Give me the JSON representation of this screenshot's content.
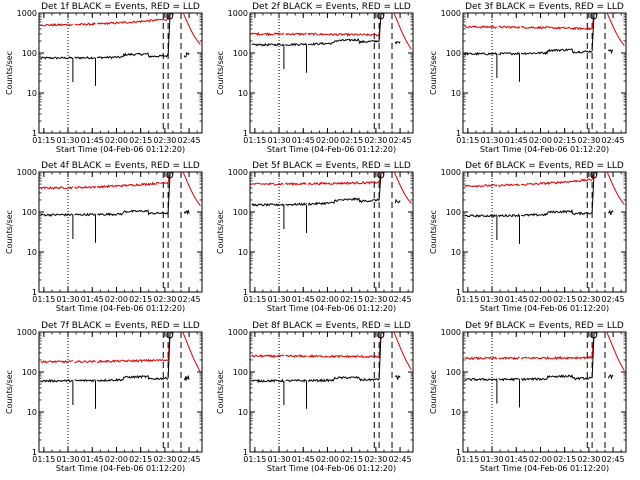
{
  "panel_template": {
    "ylabel": "Counts/sec",
    "xlabel_prefix": "Start Time",
    "x_ticks": [
      "01:15",
      "01:30",
      "01:45",
      "02:00",
      "02:15",
      "02:30",
      "02:45"
    ],
    "y_ticks": [
      "1",
      "10",
      "100",
      "1000"
    ]
  },
  "colors": {
    "events": "#000000",
    "lld": "#dd0000",
    "axes": "#000000",
    "background": "#ffffff"
  },
  "chart_data": [
    {
      "type": "line",
      "title": "Det 1f BLACK = Events, RED = LLD",
      "xlabel": "Start Time (04-Feb-06 01:12:20)",
      "ylabel": "Counts/sec",
      "x_ticks": [
        "01:15",
        "01:30",
        "01:45",
        "02:00",
        "02:15",
        "02:30",
        "02:45"
      ],
      "yscale": "log",
      "ylim": [
        1,
        1000
      ],
      "events_level": 75,
      "lld_level": 500,
      "events_end": 85,
      "lld_end": 700,
      "dotted_markers": [
        "01:30"
      ],
      "dashed_markers": [
        "02:29",
        "02:32",
        "02:40"
      ],
      "series": [
        {
          "name": "BLACK = Events"
        },
        {
          "name": "RED = LLD"
        }
      ]
    },
    {
      "type": "line",
      "title": "Det 2f BLACK = Events, RED = LLD",
      "xlabel": "Start Time (04-Feb-06 01:12:20)",
      "ylabel": "Counts/sec",
      "x_ticks": [
        "01:15",
        "01:30",
        "01:45",
        "02:00",
        "02:15",
        "02:30",
        "02:45"
      ],
      "yscale": "log",
      "ylim": [
        1,
        1000
      ],
      "events_level": 160,
      "lld_level": 300,
      "events_end": 200,
      "lld_end": 280,
      "dotted_markers": [
        "01:30"
      ],
      "dashed_markers": [
        "02:29",
        "02:32",
        "02:40"
      ],
      "series": [
        {
          "name": "BLACK = Events"
        },
        {
          "name": "RED = LLD"
        }
      ]
    },
    {
      "type": "line",
      "title": "Det 3f BLACK = Events, RED = LLD",
      "xlabel": "Start Time (04-Feb-06 01:12:20)",
      "ylabel": "Counts/sec",
      "x_ticks": [
        "01:15",
        "01:30",
        "01:45",
        "02:00",
        "02:15",
        "02:30",
        "02:45"
      ],
      "yscale": "log",
      "ylim": [
        1,
        1000
      ],
      "events_level": 95,
      "lld_level": 450,
      "events_end": 110,
      "lld_end": 400,
      "dotted_markers": [
        "01:30"
      ],
      "dashed_markers": [
        "02:29",
        "02:32",
        "02:40"
      ],
      "series": [
        {
          "name": "BLACK = Events"
        },
        {
          "name": "RED = LLD"
        }
      ]
    },
    {
      "type": "line",
      "title": "Det 4f BLACK = Events, RED = LLD",
      "xlabel": "Start Time (04-Feb-06 01:12:20)",
      "ylabel": "Counts/sec",
      "x_ticks": [
        "01:15",
        "01:30",
        "01:45",
        "02:00",
        "02:15",
        "02:30",
        "02:45"
      ],
      "yscale": "log",
      "ylim": [
        1,
        1000
      ],
      "events_level": 85,
      "lld_level": 400,
      "events_end": 95,
      "lld_end": 550,
      "dotted_markers": [
        "01:30"
      ],
      "dashed_markers": [
        "02:29",
        "02:32",
        "02:40"
      ],
      "series": [
        {
          "name": "BLACK = Events"
        },
        {
          "name": "RED = LLD"
        }
      ]
    },
    {
      "type": "line",
      "title": "Det 5f BLACK = Events, RED = LLD",
      "xlabel": "Start Time (04-Feb-06 01:12:20)",
      "ylabel": "Counts/sec",
      "x_ticks": [
        "01:15",
        "01:30",
        "01:45",
        "02:00",
        "02:15",
        "02:30",
        "02:45"
      ],
      "yscale": "log",
      "ylim": [
        1,
        1000
      ],
      "events_level": 150,
      "lld_level": 500,
      "events_end": 200,
      "lld_end": 550,
      "dotted_markers": [
        "01:30"
      ],
      "dashed_markers": [
        "02:29",
        "02:32",
        "02:40"
      ],
      "series": [
        {
          "name": "BLACK = Events"
        },
        {
          "name": "RED = LLD"
        }
      ]
    },
    {
      "type": "line",
      "title": "Det 6f BLACK = Events, RED = LLD",
      "xlabel": "Start Time (04-Feb-06 01:12:20)",
      "ylabel": "Counts/sec",
      "x_ticks": [
        "01:15",
        "01:30",
        "01:45",
        "02:00",
        "02:15",
        "02:30",
        "02:45"
      ],
      "yscale": "log",
      "ylim": [
        1,
        1000
      ],
      "events_level": 80,
      "lld_level": 450,
      "events_end": 95,
      "lld_end": 650,
      "dotted_markers": [
        "01:30"
      ],
      "dashed_markers": [
        "02:29",
        "02:32",
        "02:40"
      ],
      "series": [
        {
          "name": "BLACK = Events"
        },
        {
          "name": "RED = LLD"
        }
      ]
    },
    {
      "type": "line",
      "title": "Det 7f BLACK = Events, RED = LLD",
      "xlabel": "Start Time (04-Feb-06 01:12:20)",
      "ylabel": "Counts/sec",
      "x_ticks": [
        "01:15",
        "01:30",
        "01:45",
        "02:00",
        "02:15",
        "02:30",
        "02:45"
      ],
      "yscale": "log",
      "ylim": [
        1,
        1000
      ],
      "events_level": 60,
      "lld_level": 180,
      "events_end": 70,
      "lld_end": 200,
      "dotted_markers": [
        "01:30"
      ],
      "dashed_markers": [
        "02:29",
        "02:32",
        "02:40"
      ],
      "series": [
        {
          "name": "BLACK = Events"
        },
        {
          "name": "RED = LLD"
        }
      ]
    },
    {
      "type": "line",
      "title": "Det 8f BLACK = Events, RED = LLD",
      "xlabel": "Start Time (04-Feb-06 01:12:20)",
      "ylabel": "Counts/sec",
      "x_ticks": [
        "01:15",
        "01:30",
        "01:45",
        "02:00",
        "02:15",
        "02:30",
        "02:45"
      ],
      "yscale": "log",
      "ylim": [
        1,
        1000
      ],
      "events_level": 60,
      "lld_level": 250,
      "events_end": 65,
      "lld_end": 240,
      "dotted_markers": [
        "01:30"
      ],
      "dashed_markers": [
        "02:29",
        "02:32",
        "02:40"
      ],
      "series": [
        {
          "name": "BLACK = Events"
        },
        {
          "name": "RED = LLD"
        }
      ]
    },
    {
      "type": "line",
      "title": "Det 9f BLACK = Events, RED = LLD",
      "xlabel": "Start Time (04-Feb-06 01:12:20)",
      "ylabel": "Counts/sec",
      "x_ticks": [
        "01:15",
        "01:30",
        "01:45",
        "02:00",
        "02:15",
        "02:30",
        "02:45"
      ],
      "yscale": "log",
      "ylim": [
        1,
        1000
      ],
      "events_level": 65,
      "lld_level": 220,
      "events_end": 70,
      "lld_end": 230,
      "dotted_markers": [
        "01:30"
      ],
      "dashed_markers": [
        "02:29",
        "02:32",
        "02:40"
      ],
      "series": [
        {
          "name": "BLACK = Events"
        },
        {
          "name": "RED = LLD"
        }
      ]
    }
  ]
}
